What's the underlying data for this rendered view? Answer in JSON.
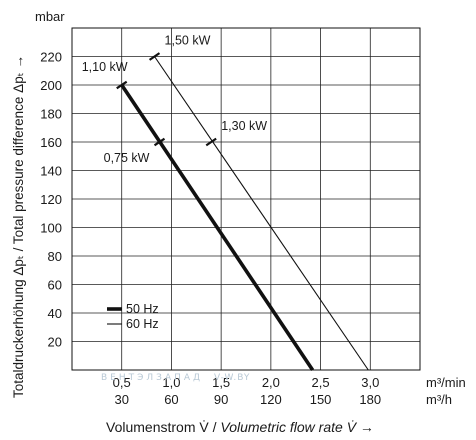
{
  "chart_data": {
    "type": "line",
    "xlabel_main": "Volumenstrom V̇ / ",
    "xlabel_italic": "Volumetric flow rate V̇",
    "xlabel_arrow": " →",
    "ylabel": "Totaldruckerhöhung Δpₜ / Total pressure difference Δpₜ →",
    "y_unit": "mbar",
    "x_unit_1": "m³/min",
    "x_unit_2": "m³/h",
    "x_ticks_1": [
      "0,5",
      "1,0",
      "1,5",
      "2,0",
      "2,5",
      "3,0"
    ],
    "x_ticks_2": [
      "30",
      "60",
      "90",
      "120",
      "150",
      "180"
    ],
    "x_tick_values": [
      0.5,
      1.0,
      1.5,
      2.0,
      2.5,
      3.0
    ],
    "y_ticks": [
      "20",
      "40",
      "60",
      "80",
      "100",
      "120",
      "140",
      "160",
      "180",
      "200",
      "220"
    ],
    "y_tick_values": [
      20,
      40,
      60,
      80,
      100,
      120,
      140,
      160,
      180,
      200,
      220
    ],
    "xlim": [
      0,
      3.5
    ],
    "ylim": [
      0,
      240
    ],
    "grid": true,
    "legend_position": "bottom-left",
    "series": [
      {
        "name": "50 Hz",
        "stroke": "#111111",
        "weight": "bold",
        "points": [
          [
            0.5,
            200
          ],
          [
            2.42,
            0
          ]
        ],
        "markers": [
          {
            "x": 0.5,
            "y": 200,
            "label": "1,10 kW",
            "label_side": "above-left"
          },
          {
            "x": 0.88,
            "y": 160,
            "label": "0,75 kW",
            "label_side": "left"
          }
        ]
      },
      {
        "name": "60 Hz",
        "stroke": "#111111",
        "weight": "thin",
        "points": [
          [
            0.83,
            220
          ],
          [
            2.98,
            0
          ]
        ],
        "markers": [
          {
            "x": 0.83,
            "y": 220,
            "label": "1,50 kW",
            "label_side": "above-right"
          },
          {
            "x": 1.4,
            "y": 160,
            "label": "1,30 kW",
            "label_side": "above-right"
          }
        ]
      }
    ]
  },
  "watermark": {
    "text_1": "ВЕНТЭЛЗАПАД",
    "text_2": "V-W.BY",
    "color": "#b9c9d6"
  }
}
